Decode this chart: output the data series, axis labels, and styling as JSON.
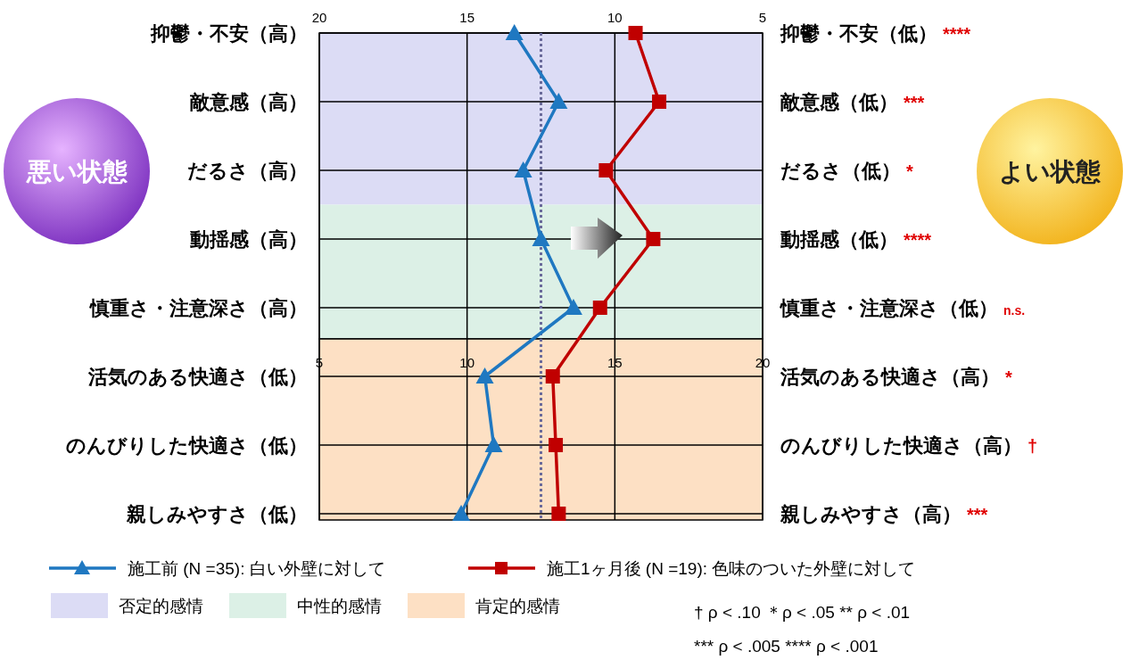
{
  "chart_data": [
    {
      "type": "line",
      "orientation": "horizontal",
      "categories": [
        "抑鬱・不安（高）",
        "敵意感（高）",
        "だるさ（高）",
        "動揺感（高）",
        "慎重さ・注意深さ（高）"
      ],
      "y2_categories": [
        "抑鬱・不安（低）",
        "敵意感（低）",
        "だるさ（低）",
        "動揺感（低）",
        "慎重さ・注意深さ（低）"
      ],
      "xlim": [
        20,
        5
      ],
      "xticks": [
        20,
        15,
        10,
        5
      ],
      "grid": true,
      "legend": "bottom",
      "series": [
        {
          "color": "#1f78c1",
          "marker": "triangle",
          "values": [
            13.4,
            11.9,
            13.1,
            12.5,
            11.4
          ]
        },
        {
          "color": "#c00000",
          "marker": "square",
          "values": [
            9.3,
            8.5,
            10.3,
            8.7,
            10.5
          ]
        }
      ],
      "ref_lines": [
        {
          "axis": "x",
          "value": 12.5,
          "color": "#6a6a9a",
          "line_style": "dotted"
        }
      ],
      "bands": [
        {
          "axis": "y",
          "from": "抑鬱・不安（高）",
          "to": "だるさ（高）",
          "label": "否定的感情",
          "color": "#dcdcf5"
        },
        {
          "axis": "y",
          "from": "動揺感（高）",
          "to": "慎重さ・注意深さ（高）",
          "label": "中性的感情",
          "color": "#dcf0e6"
        }
      ],
      "annotations": [
        "悪い状態",
        "よい状態",
        "****",
        "***",
        "*",
        "****",
        "n.s."
      ]
    },
    {
      "type": "line",
      "orientation": "horizontal",
      "categories": [
        "活気のある快適さ（低）",
        "のんびりした快適さ（低）",
        "親しみやすさ（低）"
      ],
      "y2_categories": [
        "活気のある快適さ（高）",
        "のんびりした快適さ（高）",
        "親しみやすさ（高）"
      ],
      "xlim": [
        5,
        20
      ],
      "xticks": [
        5,
        10,
        15,
        20
      ],
      "grid": true,
      "legend": "bottom",
      "series": [
        {
          "name": "施工前 (N =35): 白い外壁に対して",
          "color": "#1f78c1",
          "marker": "triangle",
          "values": [
            10.6,
            10.9,
            9.8
          ]
        },
        {
          "name": "施工1ヶ月後 (N =19): 色味のついた外壁に対して",
          "color": "#c00000",
          "marker": "square",
          "values": [
            12.9,
            13.0,
            13.1
          ]
        }
      ],
      "ref_lines": [
        {
          "axis": "x",
          "value": 12.5,
          "color": "#6a6a9a",
          "line_style": "dotted"
        }
      ],
      "bands": [
        {
          "axis": "y",
          "from": "活気のある快適さ（低）",
          "to": "親しみやすさ（低）",
          "label": "肯定的感情",
          "color": "#fde0c4"
        }
      ],
      "annotations": [
        "*",
        "†",
        "***",
        "† ρ < .10  ＊ρ < .05   ** ρ < .01",
        "*** ρ < .005   **** ρ < .001"
      ]
    }
  ]
}
